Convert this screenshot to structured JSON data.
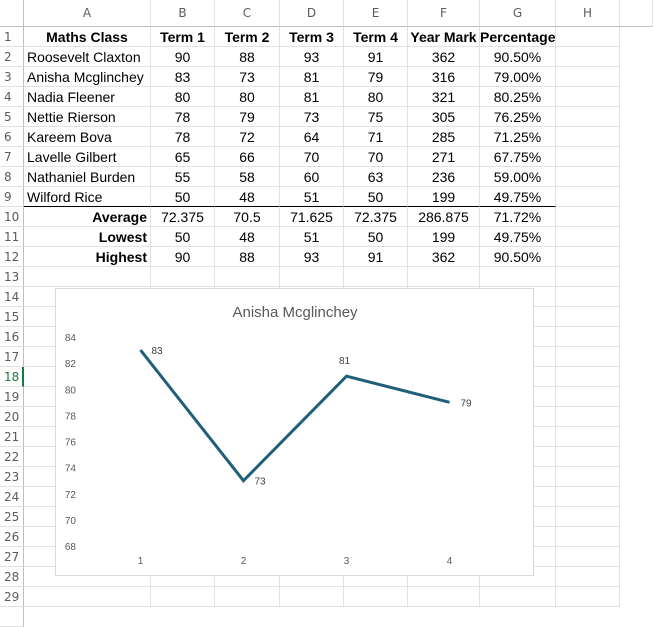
{
  "columns": [
    "A",
    "B",
    "C",
    "D",
    "E",
    "F",
    "G",
    "H",
    ""
  ],
  "rows": [
    "1",
    "2",
    "3",
    "4",
    "5",
    "6",
    "7",
    "8",
    "9",
    "10",
    "11",
    "12",
    "13",
    "14",
    "15",
    "16",
    "17",
    "18",
    "19",
    "20",
    "21",
    "22",
    "23",
    "24",
    "25",
    "26",
    "27",
    "28",
    "29",
    ""
  ],
  "active_row": "18",
  "table": {
    "headers": [
      "Maths Class",
      "Term 1",
      "Term 2",
      "Term 3",
      "Term 4",
      "Year Mark",
      "Percentage"
    ],
    "students": [
      [
        "Roosevelt Claxton",
        "90",
        "88",
        "93",
        "91",
        "362",
        "90.50%"
      ],
      [
        "Anisha Mcglinchey",
        "83",
        "73",
        "81",
        "79",
        "316",
        "79.00%"
      ],
      [
        "Nadia Fleener",
        "80",
        "80",
        "81",
        "80",
        "321",
        "80.25%"
      ],
      [
        "Nettie Rierson",
        "78",
        "79",
        "73",
        "75",
        "305",
        "76.25%"
      ],
      [
        "Kareem Bova",
        "78",
        "72",
        "64",
        "71",
        "285",
        "71.25%"
      ],
      [
        "Lavelle Gilbert",
        "65",
        "66",
        "70",
        "70",
        "271",
        "67.75%"
      ],
      [
        "Nathaniel Burden",
        "55",
        "58",
        "60",
        "63",
        "236",
        "59.00%"
      ],
      [
        "Wilford Rice",
        "50",
        "48",
        "51",
        "50",
        "199",
        "49.75%"
      ]
    ],
    "summary": [
      [
        "Average",
        "72.375",
        "70.5",
        "71.625",
        "72.375",
        "286.875",
        "71.72%"
      ],
      [
        "Lowest",
        "50",
        "48",
        "51",
        "50",
        "199",
        "49.75%"
      ],
      [
        "Highest",
        "90",
        "88",
        "93",
        "91",
        "362",
        "90.50%"
      ]
    ]
  },
  "chart_data": {
    "type": "line",
    "title": "Anisha Mcglinchey",
    "categories": [
      "1",
      "2",
      "3",
      "4"
    ],
    "series": [
      {
        "values": [
          83,
          73,
          81,
          79
        ]
      }
    ],
    "ylim": [
      68,
      84
    ],
    "yticks": [
      "68",
      "70",
      "72",
      "74",
      "76",
      "78",
      "80",
      "82",
      "84"
    ],
    "grid": false,
    "legend": "none",
    "data_labels": [
      "83",
      "73",
      "81",
      "79"
    ],
    "line_color": "#1f5f7a"
  }
}
